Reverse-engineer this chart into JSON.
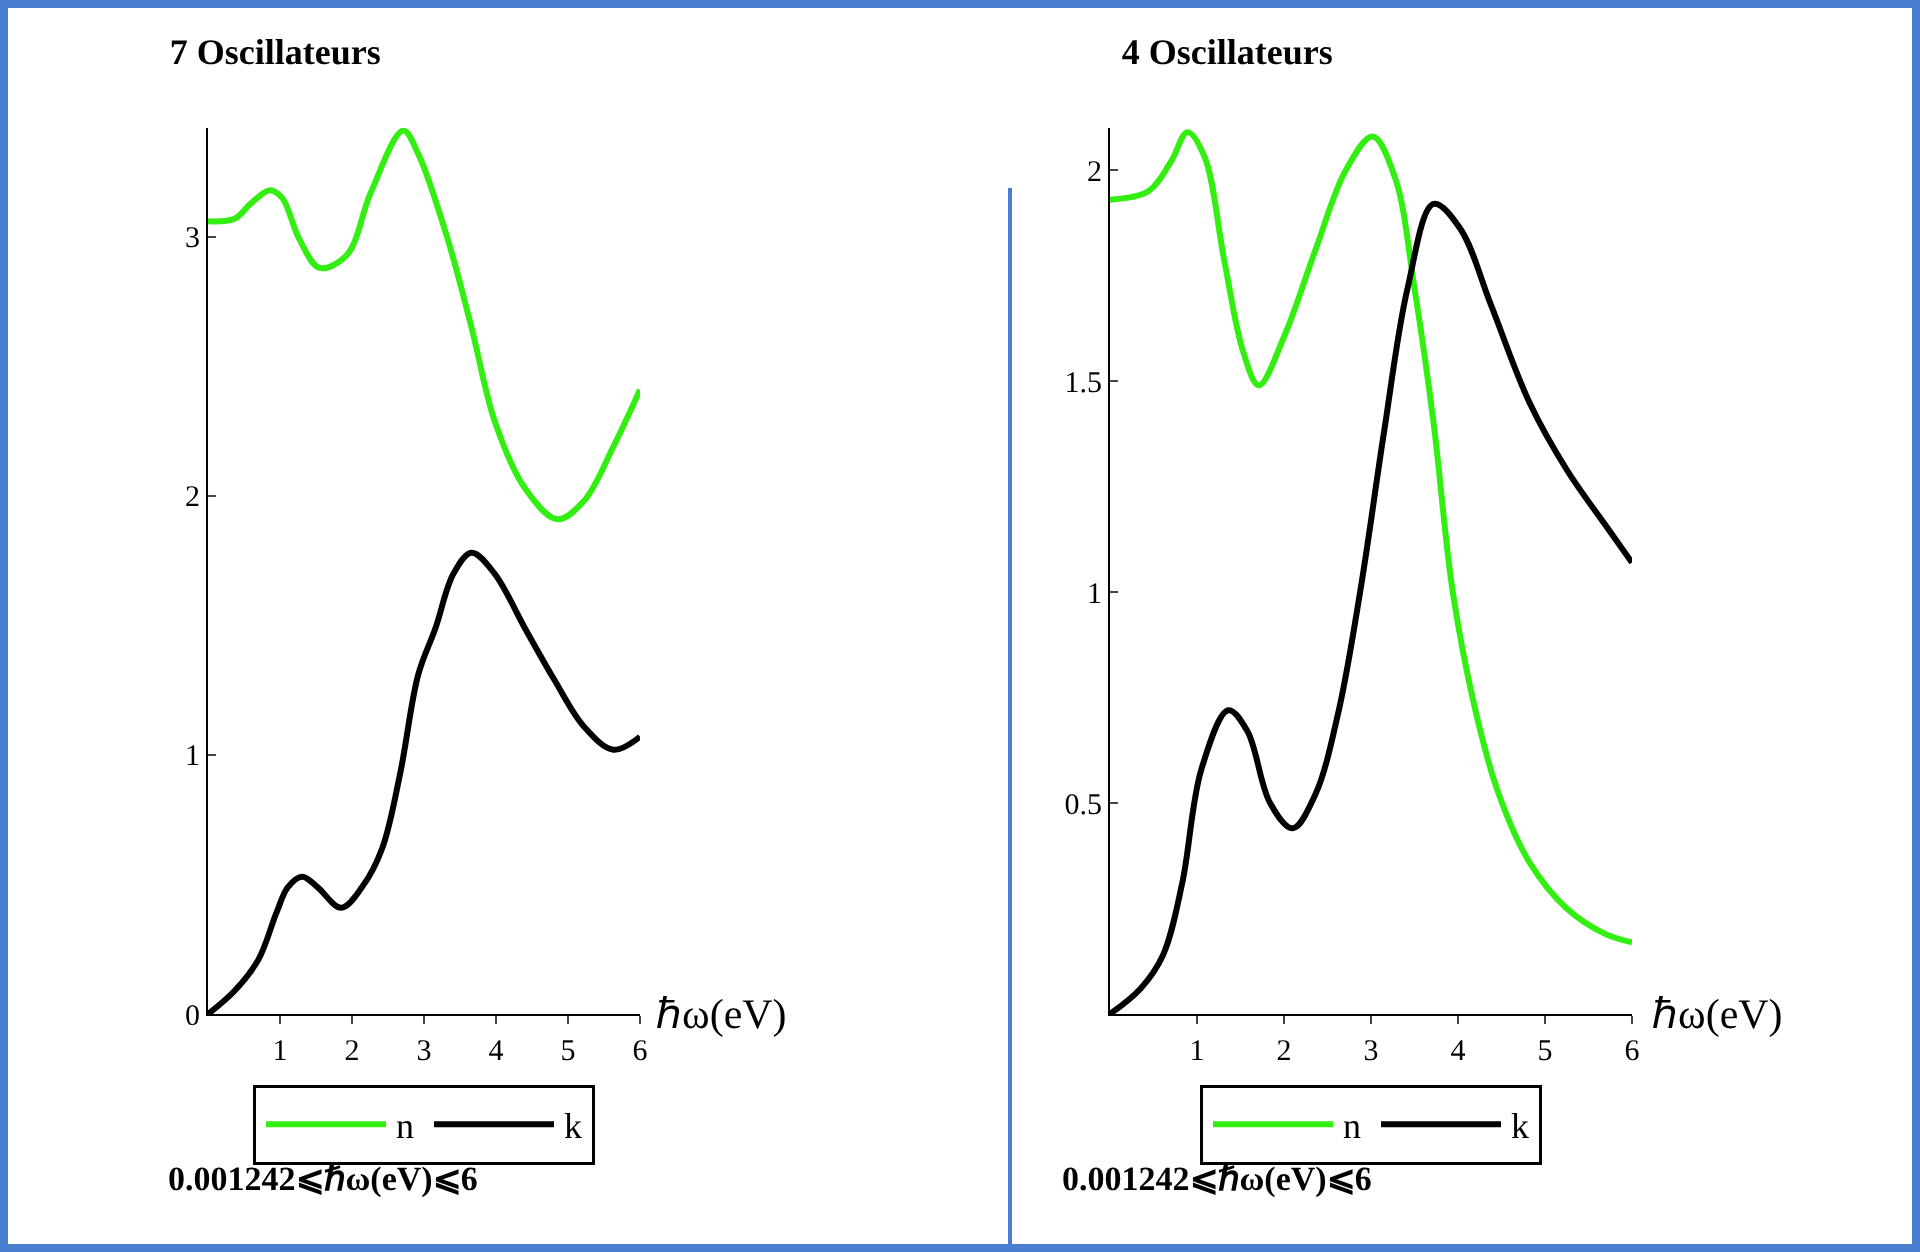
{
  "chart_data": [
    {
      "type": "line",
      "title": "7 Oscillateurs",
      "xlabel": "ℏω(eV)",
      "xlim": [
        0,
        6
      ],
      "xticks": [
        1,
        2,
        3,
        4,
        5,
        6
      ],
      "ylim": [
        0,
        3.42
      ],
      "yticks": [
        0,
        1,
        2,
        3
      ],
      "grid": false,
      "legend": "bottom",
      "line_style": "solid",
      "annotations": [
        "0.001242⩽ℏω(eV)⩽6"
      ],
      "series": [
        {
          "name": "n",
          "color": "#33ee11",
          "x": [
            0,
            0.37,
            0.6,
            0.86,
            1.03,
            1.27,
            1.55,
            1.93,
            2.26,
            2.71,
            2.92,
            3.33,
            3.66,
            3.98,
            4.4,
            4.85,
            5.22,
            5.63,
            6
          ],
          "values": [
            3.06,
            3.07,
            3.13,
            3.18,
            3.15,
            2.99,
            2.88,
            2.93,
            3.17,
            3.41,
            3.32,
            2.99,
            2.65,
            2.29,
            2.03,
            1.91,
            1.98,
            2.19,
            2.41
          ]
        },
        {
          "name": "k",
          "color": "#000000",
          "x": [
            0,
            0.37,
            0.7,
            0.95,
            1.11,
            1.31,
            1.52,
            1.85,
            2.14,
            2.42,
            2.67,
            2.92,
            3.16,
            3.41,
            3.66,
            3.98,
            4.4,
            4.81,
            5.22,
            5.63,
            6
          ],
          "values": [
            0,
            0.09,
            0.21,
            0.39,
            0.49,
            0.53,
            0.49,
            0.41,
            0.49,
            0.64,
            0.93,
            1.31,
            1.49,
            1.7,
            1.78,
            1.7,
            1.49,
            1.29,
            1.11,
            1.02,
            1.07
          ]
        }
      ]
    },
    {
      "type": "line",
      "title": "4 Oscillateurs",
      "xlabel": "ℏω(eV)",
      "xlim": [
        0,
        6
      ],
      "xticks": [
        1,
        2,
        3,
        4,
        5,
        6
      ],
      "ylim": [
        0,
        2.1
      ],
      "yticks": [
        0.5,
        1,
        1.5,
        2
      ],
      "grid": false,
      "legend": "bottom",
      "line_style": "solid",
      "annotations": [
        "0.001242⩽ℏω(eV)⩽6"
      ],
      "series": [
        {
          "name": "n",
          "color": "#33ee11",
          "x": [
            0,
            0.44,
            0.7,
            0.89,
            1.09,
            1.31,
            1.53,
            1.71,
            2.01,
            2.36,
            2.71,
            3.02,
            3.28,
            3.5,
            3.72,
            3.94,
            4.2,
            4.47,
            4.82,
            5.25,
            5.69,
            6
          ],
          "values": [
            1.93,
            1.95,
            2.02,
            2.09,
            2.03,
            1.79,
            1.57,
            1.49,
            1.61,
            1.81,
            2,
            2.08,
            1.98,
            1.72,
            1.4,
            1,
            0.72,
            0.52,
            0.36,
            0.25,
            0.19,
            0.17
          ]
        },
        {
          "name": "k",
          "color": "#000000",
          "x": [
            0,
            0.35,
            0.61,
            0.83,
            1.05,
            1.36,
            1.58,
            1.84,
            2.1,
            2.36,
            2.63,
            2.89,
            3.15,
            3.42,
            3.72,
            4.03,
            4.38,
            4.82,
            5.25,
            5.69,
            6
          ],
          "values": [
            0,
            0.06,
            0.14,
            0.31,
            0.58,
            0.72,
            0.67,
            0.5,
            0.44,
            0.52,
            0.72,
            1.02,
            1.38,
            1.72,
            1.92,
            1.86,
            1.68,
            1.45,
            1.29,
            1.16,
            1.07
          ]
        }
      ]
    }
  ]
}
